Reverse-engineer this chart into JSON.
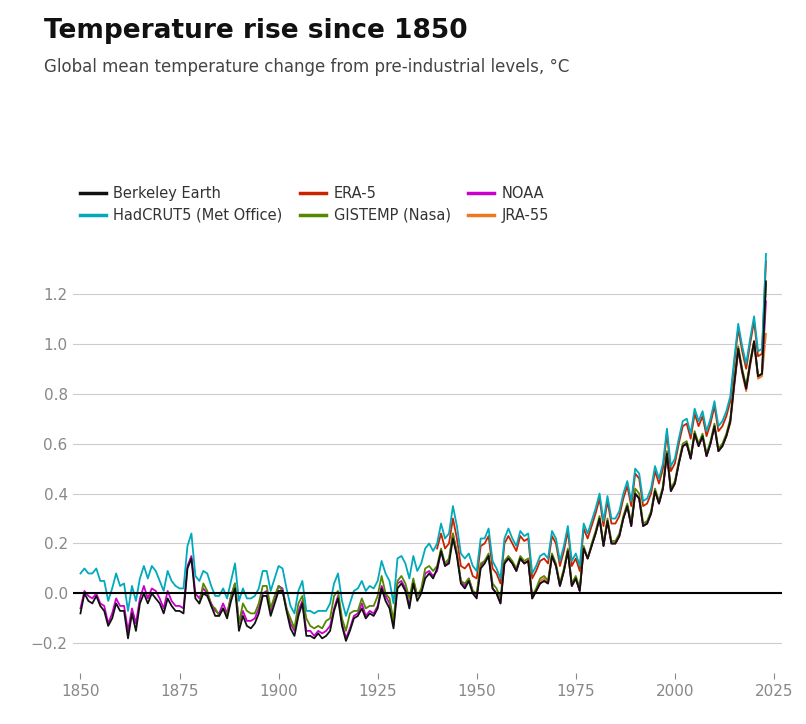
{
  "title": "Temperature rise since 1850",
  "subtitle": "Global mean temperature change from pre-industrial levels, °C",
  "title_fontsize": 19,
  "subtitle_fontsize": 12,
  "background_color": "#ffffff",
  "grid_color": "#cccccc",
  "zero_line_color": "#000000",
  "xlim": [
    1848,
    2027
  ],
  "ylim": [
    -0.32,
    1.42
  ],
  "yticks": [
    -0.2,
    0.0,
    0.2,
    0.4,
    0.6,
    0.8,
    1.0,
    1.2
  ],
  "xticks": [
    1850,
    1875,
    1900,
    1925,
    1950,
    1975,
    2000,
    2025
  ],
  "series": {
    "Berkeley Earth": {
      "color": "#111111",
      "linewidth": 1.3,
      "zorder": 6
    },
    "HadCRUT5 (Met Office)": {
      "color": "#00aabb",
      "linewidth": 1.3,
      "zorder": 5
    },
    "ERA-5": {
      "color": "#cc2200",
      "linewidth": 1.3,
      "zorder": 4
    },
    "GISTEMP (Nasa)": {
      "color": "#558800",
      "linewidth": 1.3,
      "zorder": 3
    },
    "NOAA": {
      "color": "#cc00cc",
      "linewidth": 1.3,
      "zorder": 2
    },
    "JRA-55": {
      "color": "#ee7722",
      "linewidth": 1.3,
      "zorder": 1
    }
  },
  "legend_order": [
    "Berkeley Earth",
    "HadCRUT5 (Met Office)",
    "ERA-5",
    "GISTEMP (Nasa)",
    "NOAA",
    "JRA-55"
  ]
}
